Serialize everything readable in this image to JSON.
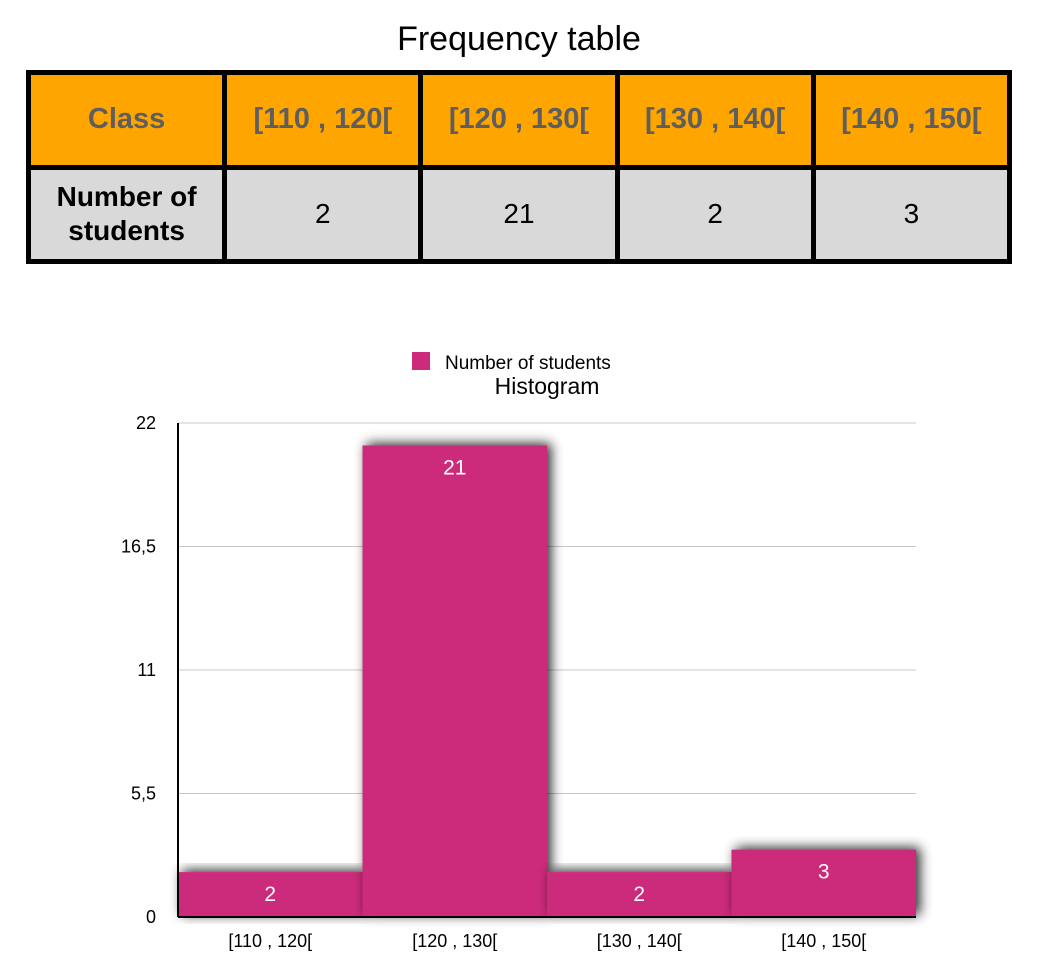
{
  "frequency_table": {
    "title": "Frequency table",
    "header_label": "Class",
    "classes": [
      "[110 , 120[",
      "[120 , 130[",
      "[130 , 140[",
      "[140 , 150["
    ],
    "row_label": "Number of students",
    "counts": [
      "2",
      "21",
      "2",
      "3"
    ]
  },
  "colors": {
    "header_fill": "#ffa500",
    "header_text": "#5e5e5e",
    "count_fill": "#d9d9d9",
    "bar": "#cc2a7a"
  },
  "chart_data": {
    "type": "bar",
    "title": "Histogram",
    "categories": [
      "[110 , 120[",
      "[120 , 130[",
      "[130 , 140[",
      "[140 , 150["
    ],
    "series": [
      {
        "name": "Number of students",
        "values": [
          2,
          21,
          2,
          3
        ]
      }
    ],
    "ylim": [
      0,
      22
    ],
    "yticks": [
      "0",
      "5,5",
      "11",
      "16,5",
      "22"
    ],
    "ytick_values": [
      0,
      5.5,
      11,
      16.5,
      22
    ],
    "xlabel": "",
    "ylabel": "",
    "grid": true,
    "legend_position": "top",
    "data_labels": true
  }
}
